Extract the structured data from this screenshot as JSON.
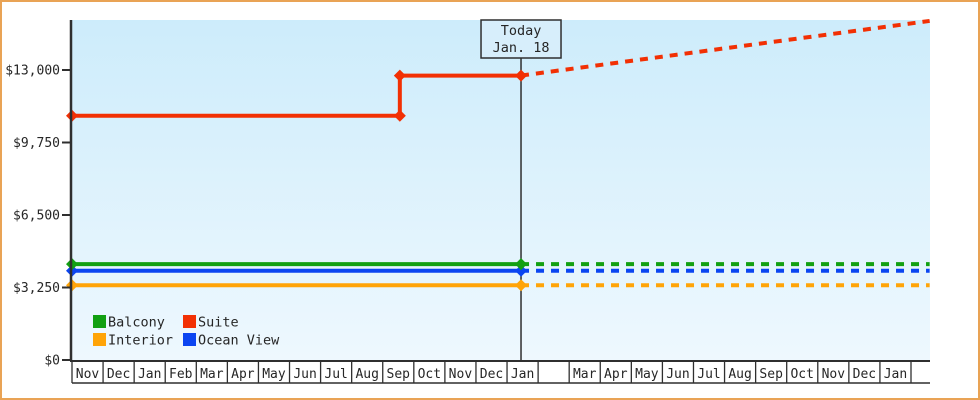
{
  "window": {
    "bg": "#ffffff",
    "border_color": "#e9a355"
  },
  "chart_data": {
    "type": "line",
    "title": "",
    "description": "Cruise cabin price history with forecast (dashed) after today",
    "today": {
      "label_line1": "Today",
      "label_line2": "Jan. 18",
      "t": 14.45,
      "box_fill": "#d7eefb",
      "line_color": "#2f2f2f"
    },
    "y_axis": {
      "min": 0,
      "top_visible_value": 15250,
      "ticks": [
        {
          "label": "$0",
          "value": 0
        },
        {
          "label": "$3,250",
          "value": 3250
        },
        {
          "label": "$6,500",
          "value": 6500
        },
        {
          "label": "$9,750",
          "value": 9750
        },
        {
          "label": "$13,000",
          "value": 13000
        }
      ]
    },
    "x_axis": {
      "cells": [
        "Nov",
        "Dec",
        "Jan",
        "Feb",
        "Mar",
        "Apr",
        "May",
        "Jun",
        "Jul",
        "Aug",
        "Sep",
        "Oct",
        "Nov",
        "Dec",
        "Jan",
        "",
        "Mar",
        "Apr",
        "May",
        "Jun",
        "Jul",
        "Aug",
        "Sep",
        "Oct",
        "Nov",
        "Dec",
        "Jan"
      ]
    },
    "series": [
      {
        "name": "Suite",
        "color": "#f23004",
        "solid": [
          [
            0,
            10950
          ],
          [
            10.55,
            10950
          ],
          [
            10.55,
            12750
          ],
          [
            14.45,
            12750
          ]
        ],
        "dashed": [
          [
            14.45,
            12750
          ],
          [
            27.6,
            15200
          ]
        ],
        "markers": [
          [
            0,
            10950
          ],
          [
            10.55,
            10950
          ],
          [
            10.55,
            12750
          ],
          [
            14.45,
            12750
          ]
        ]
      },
      {
        "name": "Interior",
        "color": "#ffa408",
        "solid": [
          [
            0,
            3350
          ],
          [
            14.45,
            3350
          ]
        ],
        "dashed": [
          [
            14.45,
            3350
          ],
          [
            27.6,
            3350
          ]
        ],
        "markers": [
          [
            0,
            3350
          ],
          [
            14.45,
            3350
          ]
        ]
      },
      {
        "name": "Ocean View",
        "color": "#0b45f1",
        "solid": [
          [
            0,
            4000
          ],
          [
            14.45,
            4000
          ]
        ],
        "dashed": [
          [
            14.45,
            4000
          ],
          [
            27.6,
            4000
          ]
        ],
        "markers": [
          [
            0,
            4000
          ],
          [
            14.45,
            4000
          ]
        ]
      },
      {
        "name": "Balcony",
        "color": "#12a012",
        "solid": [
          [
            0,
            4300
          ],
          [
            14.45,
            4300
          ]
        ],
        "dashed": [
          [
            14.45,
            4300
          ],
          [
            27.6,
            4300
          ]
        ],
        "markers": [
          [
            0,
            4300
          ],
          [
            14.45,
            4300
          ]
        ]
      }
    ],
    "legend": {
      "position": "bottom-left-inside",
      "rows": [
        [
          "Balcony",
          "Suite"
        ],
        [
          "Interior",
          "Ocean View"
        ]
      ]
    },
    "plot": {
      "bg_top": "#cdecfb",
      "bg_bottom": "#eef8fe",
      "axis_color": "#2f2f2f",
      "text_color": "#262626",
      "grid": false
    }
  }
}
